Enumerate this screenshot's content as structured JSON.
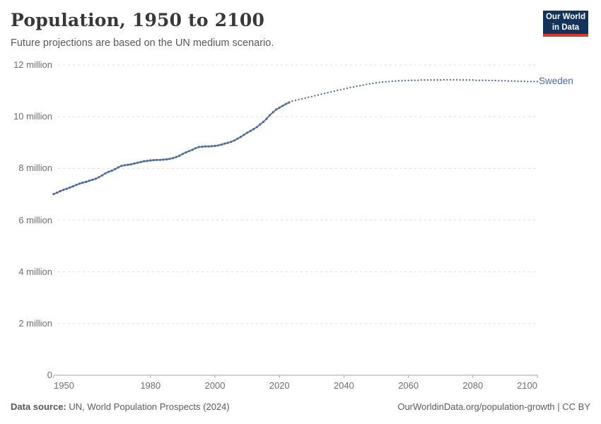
{
  "header": {
    "title": "Population, 1950 to 2100",
    "subtitle": "Future projections are based on the UN medium scenario."
  },
  "logo": {
    "line1": "Our World",
    "line2": "in Data",
    "background_color": "#14335c",
    "accent_color": "#e0392b"
  },
  "footer": {
    "source_label": "Data source:",
    "source_text": " UN, World Population Prospects (2024)",
    "right_text": "OurWorldinData.org/population-growth | CC BY"
  },
  "colors": {
    "line": "#4c6a9c",
    "grid": "#dddddd",
    "axis": "#a5a5a5",
    "tick_text": "#6e6e6e"
  },
  "chart_data": {
    "type": "line",
    "title": "Population, 1950 to 2100",
    "subtitle": "Future projections are based on the UN medium scenario.",
    "entity": "Sweden",
    "unit": "people",
    "xlim": [
      1950,
      2100
    ],
    "ylim": [
      0,
      12000000
    ],
    "grid": "dashed-horizontal",
    "x_axis": {
      "ticks": [
        1950,
        1980,
        2000,
        2020,
        2040,
        2060,
        2080,
        2100
      ],
      "tick_labels": [
        "1950",
        "1980",
        "2000",
        "2020",
        "2040",
        "2060",
        "2080",
        "2100"
      ]
    },
    "y_axis": {
      "ticks": [
        0,
        2,
        4,
        6,
        8,
        10,
        12
      ],
      "tick_labels": [
        "0",
        "2 million",
        "4 million",
        "6 million",
        "8 million",
        "10 million",
        "12 million"
      ],
      "unit_of_ticks": "million"
    },
    "series": [
      {
        "name": "Sweden",
        "color": "#4c6a9c",
        "historical": {
          "style": "solid-line-with-dot-markers",
          "start_year": 1950,
          "end_year": 2023,
          "values_millions": [
            7.01,
            7.06,
            7.12,
            7.17,
            7.21,
            7.26,
            7.31,
            7.36,
            7.41,
            7.45,
            7.48,
            7.52,
            7.56,
            7.6,
            7.66,
            7.73,
            7.81,
            7.87,
            7.91,
            7.97,
            8.04,
            8.1,
            8.12,
            8.14,
            8.16,
            8.19,
            8.22,
            8.25,
            8.28,
            8.29,
            8.31,
            8.32,
            8.33,
            8.33,
            8.34,
            8.35,
            8.37,
            8.4,
            8.44,
            8.49,
            8.56,
            8.62,
            8.67,
            8.72,
            8.78,
            8.83,
            8.84,
            8.85,
            8.85,
            8.86,
            8.87,
            8.89,
            8.92,
            8.96,
            8.99,
            9.03,
            9.08,
            9.15,
            9.22,
            9.3,
            9.38,
            9.45,
            9.52,
            9.6,
            9.7,
            9.8,
            9.92,
            10.06,
            10.17,
            10.28,
            10.35,
            10.42,
            10.49,
            10.55
          ]
        },
        "projection": {
          "style": "dotted",
          "start_year": 2024,
          "end_year": 2100,
          "values_millions": [
            10.6,
            10.63,
            10.66,
            10.69,
            10.72,
            10.75,
            10.78,
            10.81,
            10.84,
            10.87,
            10.9,
            10.93,
            10.96,
            10.99,
            11.02,
            11.04,
            11.07,
            11.1,
            11.13,
            11.15,
            11.18,
            11.2,
            11.22,
            11.25,
            11.27,
            11.29,
            11.31,
            11.33,
            11.34,
            11.35,
            11.36,
            11.37,
            11.38,
            11.39,
            11.39,
            11.4,
            11.4,
            11.41,
            11.41,
            11.41,
            11.42,
            11.42,
            11.42,
            11.42,
            11.42,
            11.42,
            11.42,
            11.43,
            11.43,
            11.43,
            11.43,
            11.43,
            11.42,
            11.42,
            11.42,
            11.42,
            11.42,
            11.41,
            11.41,
            11.41,
            11.41,
            11.4,
            11.4,
            11.4,
            11.39,
            11.39,
            11.39,
            11.38,
            11.38,
            11.38,
            11.37,
            11.37,
            11.37,
            11.36,
            11.36,
            11.36,
            11.36
          ]
        }
      }
    ]
  }
}
